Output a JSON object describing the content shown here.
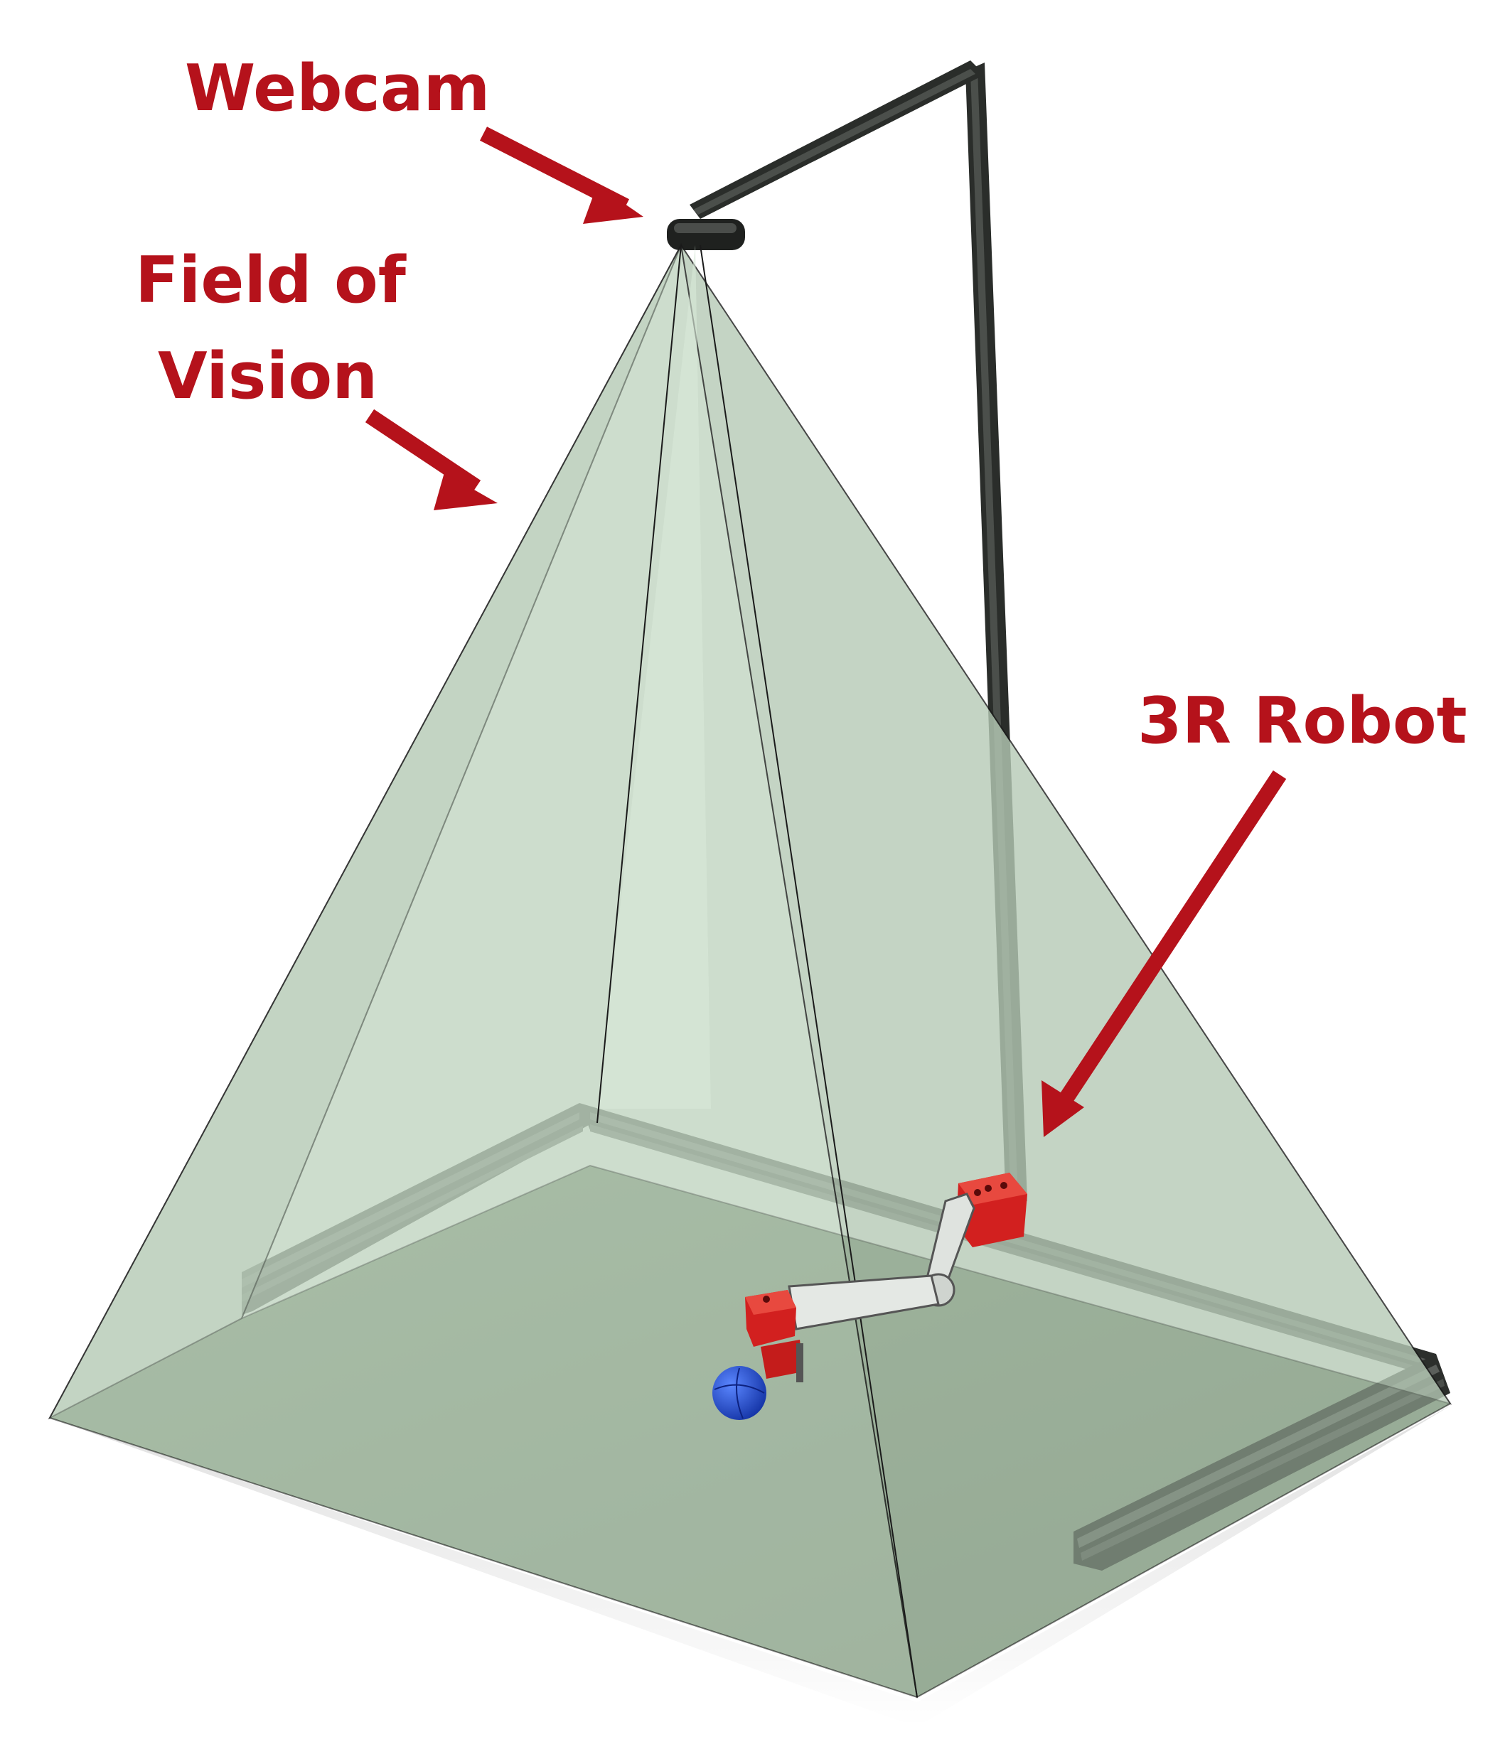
{
  "labels": {
    "webcam": "Webcam",
    "field_of_vision_line1": "Field of",
    "field_of_vision_line2": "Vision",
    "robot": "3R Robot"
  },
  "colors": {
    "callout": "#b5121b",
    "cone_light": "#cfe1cf",
    "cone_mid": "#bccdbc",
    "floor": "#8a9e86",
    "rail": "#2c2f2c",
    "robot_red": "#d2201f",
    "ball": "#1f4ed6",
    "background": "#ffffff"
  },
  "icons": {
    "arrow": "arrow-icon"
  }
}
